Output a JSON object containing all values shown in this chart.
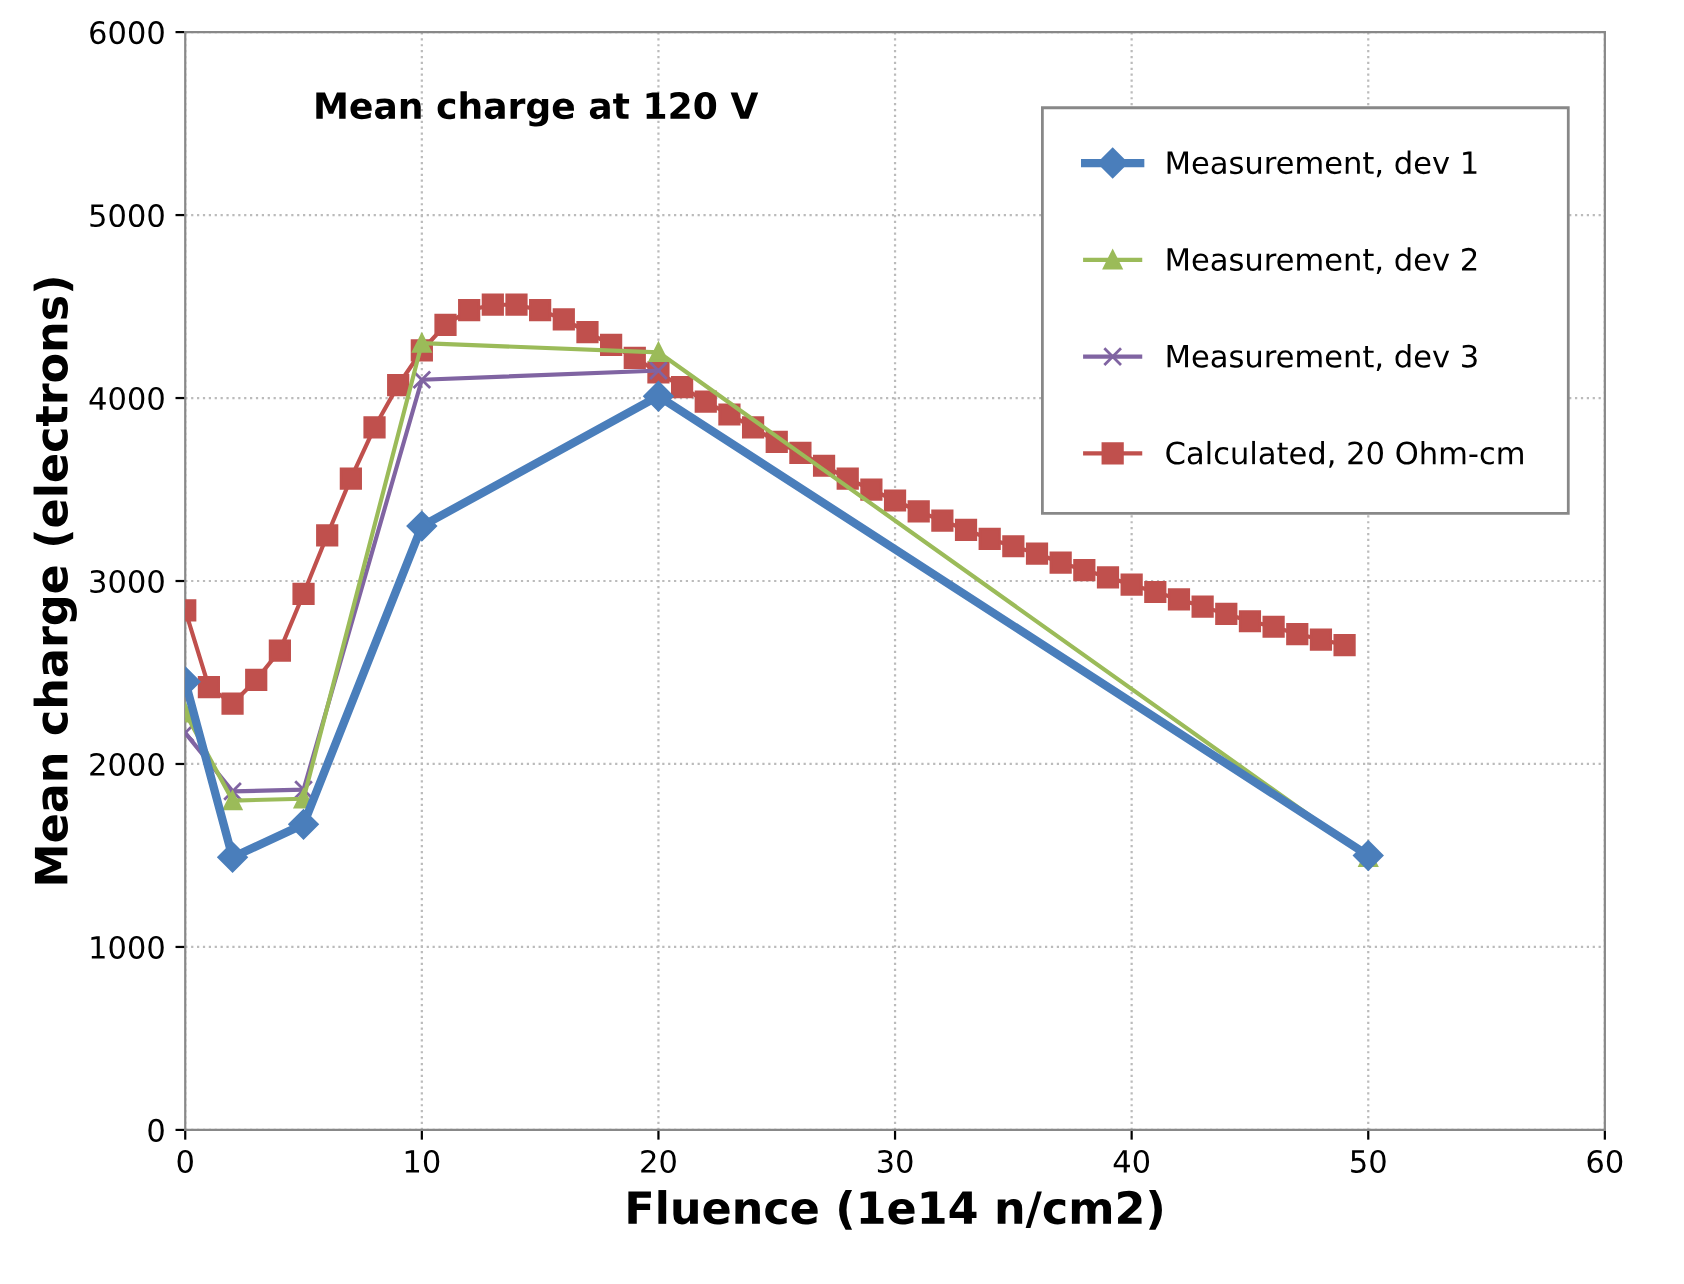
{
  "chart_data": {
    "type": "line",
    "title": "Mean charge at 120 V",
    "xlabel": "Fluence (1e14 n/cm2)",
    "ylabel": "Mean charge (electrons)",
    "xlim": [
      0,
      60
    ],
    "xticks": [
      0,
      10,
      20,
      30,
      40,
      50,
      60
    ],
    "ylim": [
      0,
      6000
    ],
    "yticks": [
      0,
      1000,
      2000,
      3000,
      4000,
      5000,
      6000
    ],
    "grid": true,
    "legend": "top right",
    "series": [
      {
        "name": "Measurement, dev 1",
        "color": "#4a7ebb",
        "marker": "diamond",
        "x": [
          0,
          2,
          5,
          10,
          20,
          50
        ],
        "values": [
          2450,
          1490,
          1670,
          3300,
          4010,
          1500
        ]
      },
      {
        "name": "Measurement, dev 2",
        "color": "#9bbb59",
        "marker": "triangle",
        "x": [
          0,
          2,
          5,
          10,
          20,
          50
        ],
        "values": [
          2280,
          1800,
          1810,
          4300,
          4250,
          1490
        ]
      },
      {
        "name": "Measurement, dev 3",
        "color": "#8064a2",
        "marker": "cross",
        "x": [
          0,
          2,
          5,
          10,
          20
        ],
        "values": [
          2170,
          1850,
          1860,
          4100,
          4150
        ]
      },
      {
        "name": "Calculated, 20 Ohm-cm",
        "color": "#c0504d",
        "marker": "square",
        "x": [
          0,
          1,
          2,
          3,
          4,
          5,
          6,
          7,
          8,
          9,
          10,
          11,
          12,
          13,
          14,
          15,
          16,
          17,
          18,
          19,
          20,
          21,
          22,
          23,
          24,
          25,
          26,
          27,
          28,
          29,
          30,
          31,
          32,
          33,
          34,
          35,
          36,
          37,
          38,
          39,
          40,
          41,
          42,
          43,
          44,
          45,
          46,
          47,
          48,
          49
        ],
        "values": [
          2840,
          2420,
          2330,
          2460,
          2620,
          2930,
          3250,
          3560,
          3840,
          4070,
          4260,
          4400,
          4480,
          4510,
          4510,
          4480,
          4430,
          4360,
          4290,
          4220,
          4140,
          4060,
          3980,
          3910,
          3840,
          3760,
          3700,
          3630,
          3560,
          3500,
          3440,
          3380,
          3330,
          3280,
          3230,
          3190,
          3150,
          3100,
          3060,
          3020,
          2980,
          2940,
          2900,
          2860,
          2820,
          2780,
          2750,
          2710,
          2680,
          2650
        ]
      }
    ]
  }
}
